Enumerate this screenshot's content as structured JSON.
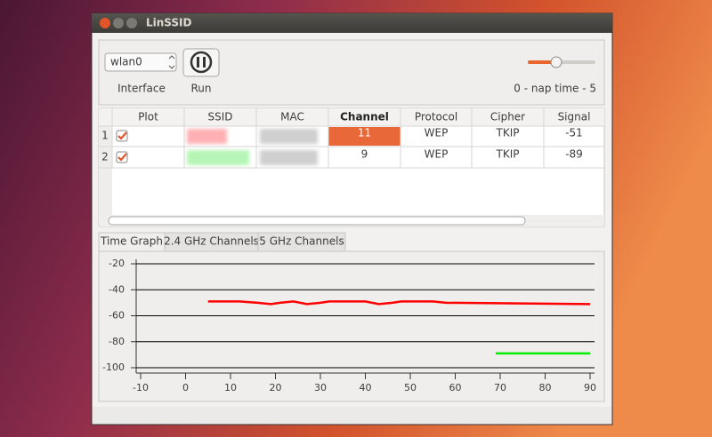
{
  "window": {
    "title": "LinSSID"
  },
  "controls": {
    "interface": "wlan0",
    "interface_label": "Interface",
    "run_label": "Run",
    "nap_label": "0 - nap time - 5"
  },
  "table": {
    "columns": [
      "Plot",
      "SSID",
      "MAC",
      "Channel",
      "Protocol",
      "Cipher",
      "Signal"
    ],
    "rows": [
      {
        "number": 1,
        "plot": true,
        "channel": 11,
        "protocol": "WEP",
        "cipher": "TKIP",
        "signal": -51
      },
      {
        "number": 2,
        "plot": true,
        "channel": 9,
        "protocol": "WEP",
        "cipher": "TKIP",
        "signal": -89
      }
    ]
  },
  "tabs": [
    "Time Graph",
    "2.4 GHz Channels",
    "5 GHz Channels"
  ],
  "chart_data": {
    "type": "line",
    "xlim": [
      -10,
      90
    ],
    "xticks": [
      -10,
      0,
      10,
      20,
      30,
      40,
      50,
      60,
      70,
      80,
      90
    ],
    "ylim": [
      -100,
      -20
    ],
    "yticks": [
      -20,
      -40,
      -60,
      -80,
      -100
    ],
    "grid": true,
    "series": [
      {
        "color": "#ff0000",
        "x": [
          5,
          12,
          16,
          19,
          21,
          24,
          27,
          30,
          32,
          40,
          43,
          46,
          48,
          55,
          58,
          90
        ],
        "values": [
          -49,
          -49,
          -50,
          -51,
          -50,
          -49,
          -51,
          -50,
          -49,
          -49,
          -51,
          -50,
          -49,
          -49,
          -50,
          -51
        ]
      },
      {
        "color": "#00ee00",
        "x": [
          69,
          90
        ],
        "values": [
          -89,
          -89
        ]
      }
    ]
  }
}
